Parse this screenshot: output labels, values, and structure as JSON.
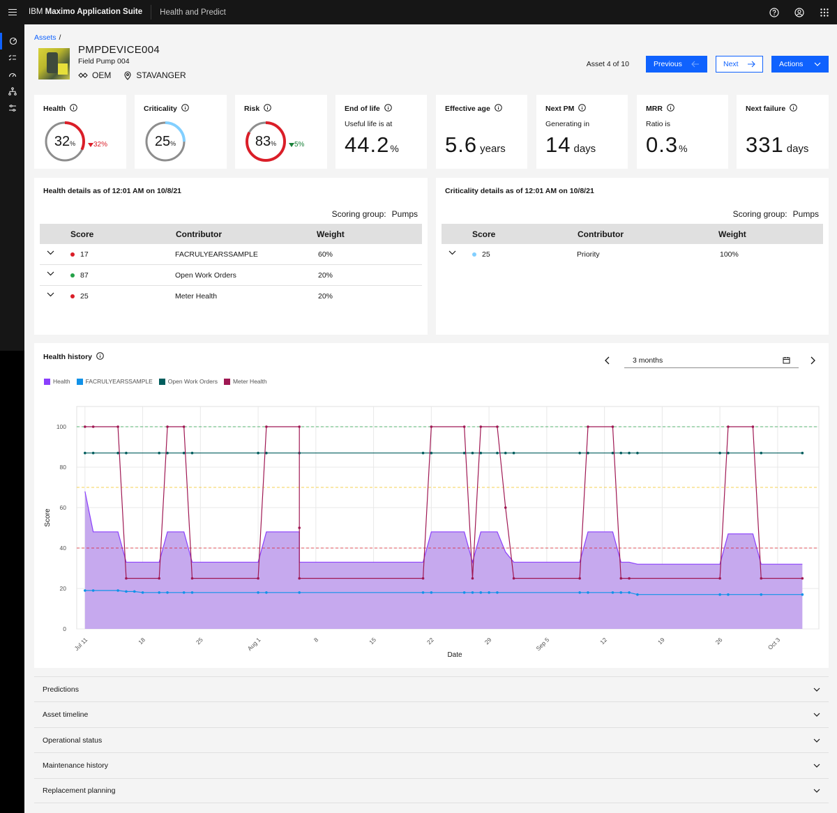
{
  "header": {
    "brand_prefix": "IBM",
    "brand_name": "Maximo Application Suite",
    "product": "Health and Predict"
  },
  "breadcrumb": {
    "root": "Assets",
    "separator": "/"
  },
  "asset": {
    "id": "PMPDEVICE004",
    "description": "Field Pump 004",
    "type": "OEM",
    "location": "STAVANGER"
  },
  "pager": {
    "count": "Asset 4 of 10",
    "previous": "Previous",
    "next": "Next",
    "actions": "Actions"
  },
  "kpis": {
    "health": {
      "label": "Health",
      "value": "32",
      "unit": "%",
      "delta": "32%",
      "delta_direction": "down",
      "color": "#da1e28",
      "fraction": 0.32
    },
    "criticality": {
      "label": "Criticality",
      "value": "25",
      "unit": "%",
      "color": "#82cfff",
      "fraction": 0.25
    },
    "risk": {
      "label": "Risk",
      "value": "83",
      "unit": "%",
      "delta": "5%",
      "delta_direction": "down",
      "color": "#da1e28",
      "fraction": 0.83
    },
    "end_of_life": {
      "label": "End of life",
      "sub": "Useful life is at",
      "value": "44.2",
      "unit": "%"
    },
    "effective_age": {
      "label": "Effective age",
      "value": "5.6",
      "unit": "years"
    },
    "next_pm": {
      "label": "Next PM",
      "sub": "Generating in",
      "value": "14",
      "unit": "days"
    },
    "mrr": {
      "label": "MRR",
      "sub": "Ratio is",
      "value": "0.3",
      "unit": "%"
    },
    "next_failure": {
      "label": "Next failure",
      "value": "331",
      "unit": "days"
    }
  },
  "health_details": {
    "title": "Health details as of 12:01 AM on 10/8/21",
    "scoring_label": "Scoring group:",
    "scoring_value": "Pumps",
    "columns": [
      "Score",
      "Contributor",
      "Weight"
    ],
    "rows": [
      {
        "score": "17",
        "contributor": "FACRULYEARSSAMPLE",
        "weight": "60%",
        "dot": "#da1e28"
      },
      {
        "score": "87",
        "contributor": "Open Work Orders",
        "weight": "20%",
        "dot": "#24a148"
      },
      {
        "score": "25",
        "contributor": "Meter Health",
        "weight": "20%",
        "dot": "#da1e28"
      }
    ]
  },
  "criticality_details": {
    "title": "Criticality details as of 12:01 AM on 10/8/21",
    "scoring_label": "Scoring group:",
    "scoring_value": "Pumps",
    "columns": [
      "Score",
      "Contributor",
      "Weight"
    ],
    "rows": [
      {
        "score": "25",
        "contributor": "Priority",
        "weight": "100%",
        "dot": "#82cfff"
      }
    ]
  },
  "health_history": {
    "title": "Health history",
    "range": "3 months"
  },
  "chart_data": {
    "type": "area",
    "title": "",
    "xlabel": "Date",
    "ylabel": "Score",
    "ylim": [
      0,
      110
    ],
    "yticks": [
      0,
      20,
      40,
      60,
      80,
      100
    ],
    "xlim": [
      "2021-07-10",
      "2021-10-08"
    ],
    "xticks": [
      {
        "date": "2021-07-11",
        "label": "Jul 11"
      },
      {
        "date": "2021-07-18",
        "label": "18"
      },
      {
        "date": "2021-07-25",
        "label": "25"
      },
      {
        "date": "2021-08-01",
        "label": "Aug 1"
      },
      {
        "date": "2021-08-08",
        "label": "8"
      },
      {
        "date": "2021-08-15",
        "label": "15"
      },
      {
        "date": "2021-08-22",
        "label": "22"
      },
      {
        "date": "2021-08-29",
        "label": "29"
      },
      {
        "date": "2021-09-05",
        "label": "Sep 5"
      },
      {
        "date": "2021-09-12",
        "label": "12"
      },
      {
        "date": "2021-09-19",
        "label": "19"
      },
      {
        "date": "2021-09-26",
        "label": "26"
      },
      {
        "date": "2021-10-03",
        "label": "Oct 3"
      }
    ],
    "thresholds": [
      {
        "value": 100,
        "color": "#24a148"
      },
      {
        "value": 70,
        "color": "#f1c21b"
      },
      {
        "value": 40,
        "color": "#da1e28"
      }
    ],
    "grid": true,
    "legend_position": "top-left",
    "series": [
      {
        "name": "Health",
        "color": "#8a3ffc",
        "fill": "#c6a9ee",
        "style": "area",
        "points": [
          [
            "2021-07-11",
            68
          ],
          [
            "2021-07-12",
            48
          ],
          [
            "2021-07-15",
            48
          ],
          [
            "2021-07-16",
            33
          ],
          [
            "2021-07-20",
            33
          ],
          [
            "2021-07-21",
            48
          ],
          [
            "2021-07-23",
            48
          ],
          [
            "2021-07-24",
            33
          ],
          [
            "2021-08-01",
            33
          ],
          [
            "2021-08-02",
            48
          ],
          [
            "2021-08-06",
            48
          ],
          [
            "2021-08-06",
            33
          ],
          [
            "2021-08-21",
            33
          ],
          [
            "2021-08-22",
            48
          ],
          [
            "2021-08-26",
            48
          ],
          [
            "2021-08-27",
            33
          ],
          [
            "2021-08-28",
            48
          ],
          [
            "2021-08-30",
            48
          ],
          [
            "2021-08-31",
            38
          ],
          [
            "2021-09-01",
            33
          ],
          [
            "2021-09-09",
            33
          ],
          [
            "2021-09-10",
            48
          ],
          [
            "2021-09-13",
            48
          ],
          [
            "2021-09-14",
            33
          ],
          [
            "2021-09-15",
            33
          ],
          [
            "2021-09-16",
            32
          ],
          [
            "2021-09-26",
            32
          ],
          [
            "2021-09-27",
            47
          ],
          [
            "2021-09-30",
            47
          ],
          [
            "2021-10-01",
            32
          ],
          [
            "2021-10-06",
            32
          ]
        ]
      },
      {
        "name": "FACRULYEARSSAMPLE",
        "color": "#1192e8",
        "style": "line",
        "points": [
          [
            "2021-07-11",
            19
          ],
          [
            "2021-07-12",
            19
          ],
          [
            "2021-07-15",
            19
          ],
          [
            "2021-07-16",
            18.5
          ],
          [
            "2021-07-17",
            18.5
          ],
          [
            "2021-07-18",
            18
          ],
          [
            "2021-07-20",
            18
          ],
          [
            "2021-07-21",
            18
          ],
          [
            "2021-07-23",
            18
          ],
          [
            "2021-07-24",
            18
          ],
          [
            "2021-08-01",
            18
          ],
          [
            "2021-08-02",
            18
          ],
          [
            "2021-08-06",
            18
          ],
          [
            "2021-08-21",
            18
          ],
          [
            "2021-08-22",
            18
          ],
          [
            "2021-08-26",
            18
          ],
          [
            "2021-08-27",
            18
          ],
          [
            "2021-08-28",
            18
          ],
          [
            "2021-08-29",
            18
          ],
          [
            "2021-08-30",
            18
          ],
          [
            "2021-09-09",
            18
          ],
          [
            "2021-09-10",
            18
          ],
          [
            "2021-09-13",
            18
          ],
          [
            "2021-09-14",
            18
          ],
          [
            "2021-09-15",
            18
          ],
          [
            "2021-09-16",
            17
          ],
          [
            "2021-09-26",
            17
          ],
          [
            "2021-09-27",
            17
          ],
          [
            "2021-10-01",
            17
          ],
          [
            "2021-10-06",
            17
          ]
        ]
      },
      {
        "name": "Open Work Orders",
        "color": "#005d5d",
        "style": "line",
        "points": [
          [
            "2021-07-11",
            87
          ],
          [
            "2021-07-12",
            87
          ],
          [
            "2021-07-15",
            87
          ],
          [
            "2021-07-16",
            87
          ],
          [
            "2021-07-20",
            87
          ],
          [
            "2021-07-21",
            87
          ],
          [
            "2021-07-23",
            87
          ],
          [
            "2021-07-24",
            87
          ],
          [
            "2021-08-01",
            87
          ],
          [
            "2021-08-02",
            87
          ],
          [
            "2021-08-06",
            87
          ],
          [
            "2021-08-21",
            87
          ],
          [
            "2021-08-22",
            87
          ],
          [
            "2021-08-26",
            87
          ],
          [
            "2021-08-27",
            87
          ],
          [
            "2021-08-28",
            87
          ],
          [
            "2021-08-30",
            87
          ],
          [
            "2021-08-31",
            87
          ],
          [
            "2021-09-01",
            87
          ],
          [
            "2021-09-09",
            87
          ],
          [
            "2021-09-10",
            87
          ],
          [
            "2021-09-13",
            87
          ],
          [
            "2021-09-14",
            87
          ],
          [
            "2021-09-15",
            87
          ],
          [
            "2021-09-16",
            87
          ],
          [
            "2021-09-26",
            87
          ],
          [
            "2021-09-27",
            87
          ],
          [
            "2021-10-01",
            87
          ],
          [
            "2021-10-06",
            87
          ]
        ]
      },
      {
        "name": "Meter Health",
        "color": "#9f1853",
        "style": "line",
        "points": [
          [
            "2021-07-11",
            100
          ],
          [
            "2021-07-12",
            100
          ],
          [
            "2021-07-15",
            100
          ],
          [
            "2021-07-16",
            25
          ],
          [
            "2021-07-20",
            25
          ],
          [
            "2021-07-21",
            100
          ],
          [
            "2021-07-23",
            100
          ],
          [
            "2021-07-24",
            25
          ],
          [
            "2021-08-01",
            25
          ],
          [
            "2021-08-02",
            100
          ],
          [
            "2021-08-06",
            100
          ],
          [
            "2021-08-06",
            50
          ],
          [
            "2021-08-06",
            25
          ],
          [
            "2021-08-21",
            25
          ],
          [
            "2021-08-22",
            100
          ],
          [
            "2021-08-26",
            100
          ],
          [
            "2021-08-27",
            25
          ],
          [
            "2021-08-28",
            100
          ],
          [
            "2021-08-30",
            100
          ],
          [
            "2021-08-31",
            60
          ],
          [
            "2021-09-01",
            25
          ],
          [
            "2021-09-09",
            25
          ],
          [
            "2021-09-10",
            100
          ],
          [
            "2021-09-13",
            100
          ],
          [
            "2021-09-14",
            25
          ],
          [
            "2021-09-15",
            25
          ],
          [
            "2021-09-26",
            25
          ],
          [
            "2021-09-27",
            100
          ],
          [
            "2021-09-30",
            100
          ],
          [
            "2021-10-01",
            25
          ],
          [
            "2021-10-06",
            25
          ]
        ]
      }
    ]
  },
  "sections": [
    {
      "label": "Predictions"
    },
    {
      "label": "Asset timeline"
    },
    {
      "label": "Operational status"
    },
    {
      "label": "Maintenance history"
    },
    {
      "label": "Replacement planning"
    }
  ]
}
